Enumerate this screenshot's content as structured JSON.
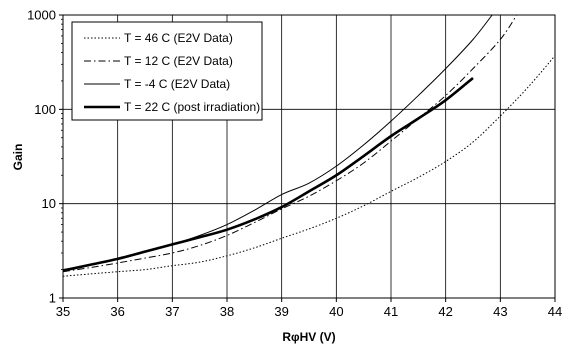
{
  "chart_data": {
    "type": "line",
    "title": "",
    "xlabel": "RφHV (V)",
    "ylabel": "Gain",
    "xlim": [
      35,
      44
    ],
    "ylim": [
      1,
      1000
    ],
    "yscale": "log",
    "grid": true,
    "legend_position": "top-left",
    "x_ticks": [
      "35",
      "36",
      "37",
      "38",
      "39",
      "40",
      "41",
      "42",
      "43",
      "44"
    ],
    "y_ticks": [
      "1",
      "10",
      "100",
      "1000"
    ],
    "series": [
      {
        "name": "T = 46 C (E2V Data)",
        "style": "dotted",
        "color": "#000000",
        "x": [
          35,
          35.5,
          36,
          36.5,
          37,
          37.5,
          38,
          38.5,
          39,
          39.5,
          40,
          40.5,
          41,
          41.5,
          42,
          42.5,
          43,
          43.5,
          44
        ],
        "y": [
          1.7,
          1.8,
          1.9,
          2.0,
          2.2,
          2.4,
          2.8,
          3.4,
          4.3,
          5.4,
          7.0,
          9.5,
          13.5,
          19.0,
          28.0,
          45.0,
          85.0,
          170.0,
          370.0
        ]
      },
      {
        "name": "T = 12 C (E2V Data)",
        "style": "dashdot",
        "color": "#000000",
        "x": [
          35,
          35.5,
          36,
          36.5,
          37,
          37.5,
          38,
          38.5,
          39,
          39.5,
          40,
          40.5,
          41,
          41.5,
          42,
          42.5,
          43,
          43.3
        ],
        "y": [
          1.9,
          2.1,
          2.35,
          2.65,
          3.0,
          3.6,
          4.6,
          6.3,
          8.8,
          12.0,
          17.5,
          27.0,
          46.0,
          80.0,
          140.0,
          270.0,
          550.0,
          1000.0
        ]
      },
      {
        "name": "T = -4 C (E2V Data)",
        "style": "solid-thin",
        "color": "#000000",
        "x": [
          35,
          35.5,
          36,
          36.5,
          37,
          37.5,
          38,
          38.5,
          39,
          39.5,
          40,
          40.5,
          41,
          41.5,
          42,
          42.5,
          42.85
        ],
        "y": [
          2.0,
          2.25,
          2.6,
          3.1,
          3.7,
          4.6,
          6.0,
          8.5,
          12.5,
          16.5,
          25.0,
          42.0,
          75.0,
          140.0,
          270.0,
          550.0,
          1000.0
        ]
      },
      {
        "name": "T = 22 C (post irradiation)",
        "style": "solid-thick",
        "color": "#000000",
        "x": [
          35,
          35.5,
          36,
          36.5,
          37,
          37.5,
          38,
          38.5,
          39,
          39.5,
          40,
          40.5,
          41,
          41.5,
          42,
          42.5
        ],
        "y": [
          1.95,
          2.25,
          2.6,
          3.1,
          3.7,
          4.4,
          5.3,
          6.8,
          9.2,
          13.5,
          20.0,
          32.0,
          52.0,
          80.0,
          125.0,
          215.0
        ]
      }
    ]
  }
}
